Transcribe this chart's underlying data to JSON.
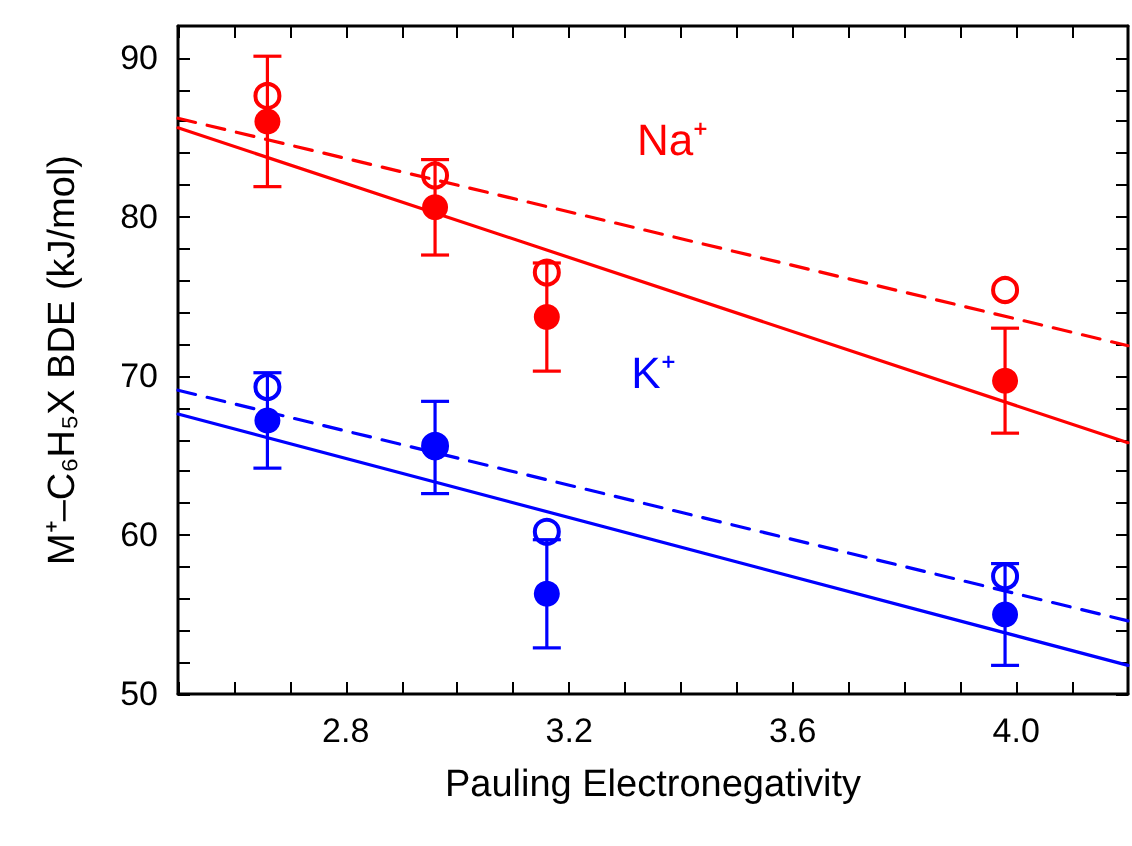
{
  "chart_data": {
    "type": "scatter",
    "xlabel": "Pauling Electronegativity",
    "ylabel": "M⁺–C₆H₅X BDE (kJ/mol)",
    "xlim": [
      2.5,
      4.2
    ],
    "ylim": [
      50,
      92
    ],
    "xticks": [
      {
        "value": 2.5,
        "label": null
      },
      {
        "value": 2.6,
        "label": null
      },
      {
        "value": 2.7,
        "label": null
      },
      {
        "value": 2.8,
        "label": "2.8"
      },
      {
        "value": 2.9,
        "label": null
      },
      {
        "value": 3.0,
        "label": null
      },
      {
        "value": 3.1,
        "label": null
      },
      {
        "value": 3.2,
        "label": "3.2"
      },
      {
        "value": 3.3,
        "label": null
      },
      {
        "value": 3.4,
        "label": null
      },
      {
        "value": 3.5,
        "label": null
      },
      {
        "value": 3.6,
        "label": "3.6"
      },
      {
        "value": 3.7,
        "label": null
      },
      {
        "value": 3.8,
        "label": null
      },
      {
        "value": 3.9,
        "label": null
      },
      {
        "value": 4.0,
        "label": "4.0"
      },
      {
        "value": 4.1,
        "label": null
      }
    ],
    "yticks": [
      50,
      {
        "value": 52,
        "label": null
      },
      {
        "value": 54,
        "label": null
      },
      {
        "value": 56,
        "label": null
      },
      {
        "value": 58,
        "label": null
      },
      60,
      {
        "value": 62,
        "label": null
      },
      {
        "value": 64,
        "label": null
      },
      {
        "value": 66,
        "label": null
      },
      {
        "value": 68,
        "label": null
      },
      70,
      {
        "value": 72,
        "label": null
      },
      {
        "value": 74,
        "label": null
      },
      {
        "value": 76,
        "label": null
      },
      {
        "value": 78,
        "label": null
      },
      80,
      {
        "value": 82,
        "label": null
      },
      {
        "value": 84,
        "label": null
      },
      {
        "value": 86,
        "label": null
      },
      {
        "value": 88,
        "label": null
      },
      90
    ],
    "grid": false,
    "series": [
      {
        "type": "line",
        "color": "#ff0000",
        "x": [
          2.5,
          4.2
        ],
        "values": [
          85.6,
          65.8
        ],
        "line_style": "solid",
        "marker": "none"
      },
      {
        "type": "line",
        "color": "#ff0000",
        "x": [
          2.5,
          4.2
        ],
        "values": [
          86.2,
          71.9
        ],
        "line_style": "dashed",
        "marker": "none"
      },
      {
        "type": "line",
        "color": "#0000ff",
        "x": [
          2.5,
          4.2
        ],
        "values": [
          67.6,
          51.8
        ],
        "line_style": "solid",
        "marker": "none"
      },
      {
        "type": "line",
        "color": "#0000ff",
        "x": [
          2.5,
          4.2
        ],
        "values": [
          69.1,
          54.6
        ],
        "line_style": "dashed",
        "marker": "none"
      },
      {
        "color": "#ff0000",
        "x": [
          2.66,
          2.96,
          3.16,
          3.98
        ],
        "values": [
          87.6,
          82.6,
          76.5,
          75.4
        ],
        "marker": "circle"
      },
      {
        "color": "#ff0000",
        "x": [
          2.66,
          2.96,
          3.16,
          3.98
        ],
        "values": [
          86.0,
          80.6,
          73.7,
          69.7
        ],
        "errors": [
          4.1,
          3.0,
          3.4,
          3.3
        ],
        "marker": "circle"
      },
      {
        "color": "#0000ff",
        "x": [
          2.66,
          2.96,
          3.16,
          3.98
        ],
        "values": [
          69.3,
          65.6,
          60.2,
          57.4
        ],
        "marker": "circle"
      },
      {
        "color": "#0000ff",
        "x": [
          2.66,
          2.96,
          3.16,
          3.98
        ],
        "values": [
          67.2,
          65.5,
          56.3,
          55.0
        ],
        "errors": [
          3.0,
          2.9,
          3.4,
          3.2
        ],
        "marker": "circle"
      }
    ],
    "annotations": [
      "Na⁺",
      "K⁺"
    ]
  }
}
